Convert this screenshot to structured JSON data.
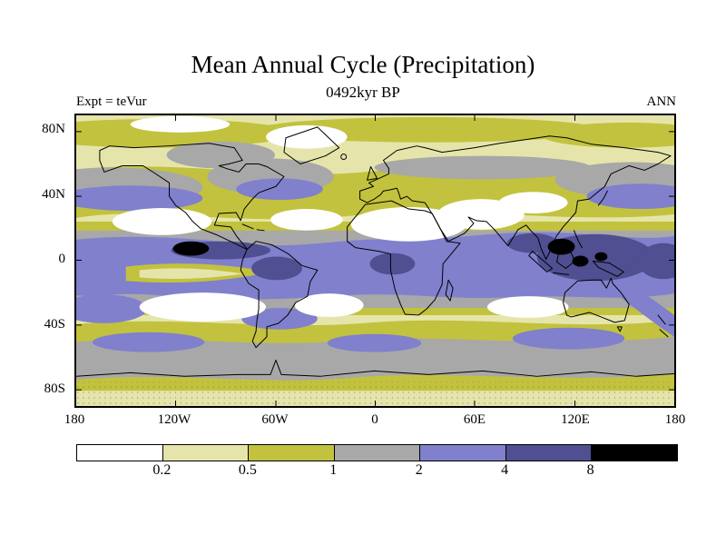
{
  "header": {
    "title": "Mean Annual Cycle (Precipitation)",
    "subtitle": "0492kyr BP",
    "experiment_label": "Expt = teVur",
    "season_label": "ANN"
  },
  "axes": {
    "y_labels": [
      "80N",
      "40N",
      "0",
      "40S",
      "80S"
    ],
    "x_labels": [
      "180",
      "120W",
      "60W",
      "0",
      "60E",
      "120E",
      "180"
    ]
  },
  "colorbar": {
    "tick_labels": [
      "0.2",
      "0.5",
      "1",
      "2",
      "4",
      "8"
    ],
    "colors": [
      "#ffffff",
      "#e5e5ab",
      "#c2c23e",
      "#a8a8a8",
      "#8080cd",
      "#4f4f91",
      "#000000"
    ]
  },
  "chart_data": {
    "type": "heatmap",
    "subtype": "filled-contour world map (equirectangular)",
    "title": "Mean Annual Cycle (Precipitation)",
    "subtitle": "0492kyr BP",
    "experiment": "teVur",
    "season": "ANN",
    "x_axis": {
      "label": "longitude",
      "ticks": [
        "180",
        "120W",
        "60W",
        "0",
        "60E",
        "120E",
        "180"
      ],
      "range_deg": [
        -180,
        180
      ]
    },
    "y_axis": {
      "label": "latitude",
      "ticks": [
        "80N",
        "40N",
        "0",
        "40S",
        "80S"
      ],
      "range_deg": [
        -90,
        90
      ]
    },
    "contour_levels": [
      0.2,
      0.5,
      1,
      2,
      4,
      8
    ],
    "level_bins": [
      "< 0.2",
      "0.2-0.5",
      "0.5-1",
      "1-2",
      "2-4",
      "4-8",
      "> 8"
    ],
    "level_colors": [
      "#ffffff",
      "#e5e5ab",
      "#c2c23e",
      "#a8a8a8",
      "#8080cd",
      "#4f4f91",
      "#000000"
    ],
    "legend_position": "bottom",
    "notable_features": [
      "black maxima (> 8) over the east Pacific ITCZ near 10N and over the Maritime Continent / west Pacific warm pool",
      "dark blue (4-8) cores over the Amazon, central Africa, Bay of Bengal and Indonesia",
      "blue-purple (2-4) band along the equator at all longitudes plus north Pacific, north Atlantic and Southern Ocean storm tracks",
      "white dry zones (< 0.2) over the Sahara-Arabia-central Asia belt and the subtropical southeast Pacific, south Atlantic and south Indian oceans",
      "gray (1-2) transition bands around the wet zones and across the Southern Ocean",
      "yellow-khaki (0.2-1) over most remaining land, polar caps and the east Pacific equatorial dry tongue"
    ]
  }
}
